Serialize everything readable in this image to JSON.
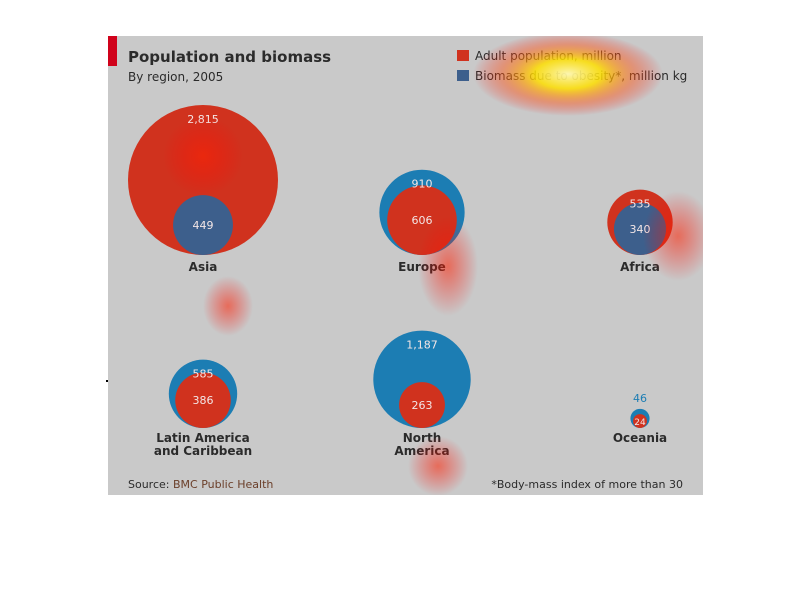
{
  "header": {
    "title": "Population and biomass",
    "subtitle": "By region, 2005"
  },
  "legend": [
    {
      "label": "Adult population, million",
      "color": "#d0321e"
    },
    {
      "label": "Biomass due to obesity*, million kg",
      "color": "#3d5f8c"
    }
  ],
  "colors": {
    "population": "#d0321e",
    "biomass_blue": "#1c7db3",
    "biomass_on_red": "#3d5f8c",
    "panel": "#c9c9c9"
  },
  "chart_data": {
    "type": "bubble",
    "series": [
      {
        "name": "Adult population, million"
      },
      {
        "name": "Biomass due to obesity*, million kg"
      }
    ],
    "regions": [
      {
        "name": "Asia",
        "population": 2815,
        "biomass": 449,
        "population_label": "2,815",
        "biomass_label": "449",
        "row": 0,
        "col": 0
      },
      {
        "name": "Europe",
        "population": 606,
        "biomass": 910,
        "population_label": "606",
        "biomass_label": "910",
        "row": 0,
        "col": 1
      },
      {
        "name": "Africa",
        "population": 535,
        "biomass": 340,
        "population_label": "535",
        "biomass_label": "340",
        "row": 0,
        "col": 2
      },
      {
        "name": "Latin America and Caribbean",
        "population": 386,
        "biomass": 585,
        "population_label": "386",
        "biomass_label": "585",
        "row": 1,
        "col": 0
      },
      {
        "name": "North America",
        "population": 263,
        "biomass": 1187,
        "population_label": "263",
        "biomass_label": "1,187",
        "row": 1,
        "col": 1
      },
      {
        "name": "Oceania",
        "population": 24,
        "biomass": 46,
        "population_label": "24",
        "biomass_label": "46",
        "row": 1,
        "col": 2
      }
    ]
  },
  "footer": {
    "source_prefix": "Source: ",
    "source_name": "BMC Public Health",
    "footnote": "*Body-mass index of more than 30"
  }
}
